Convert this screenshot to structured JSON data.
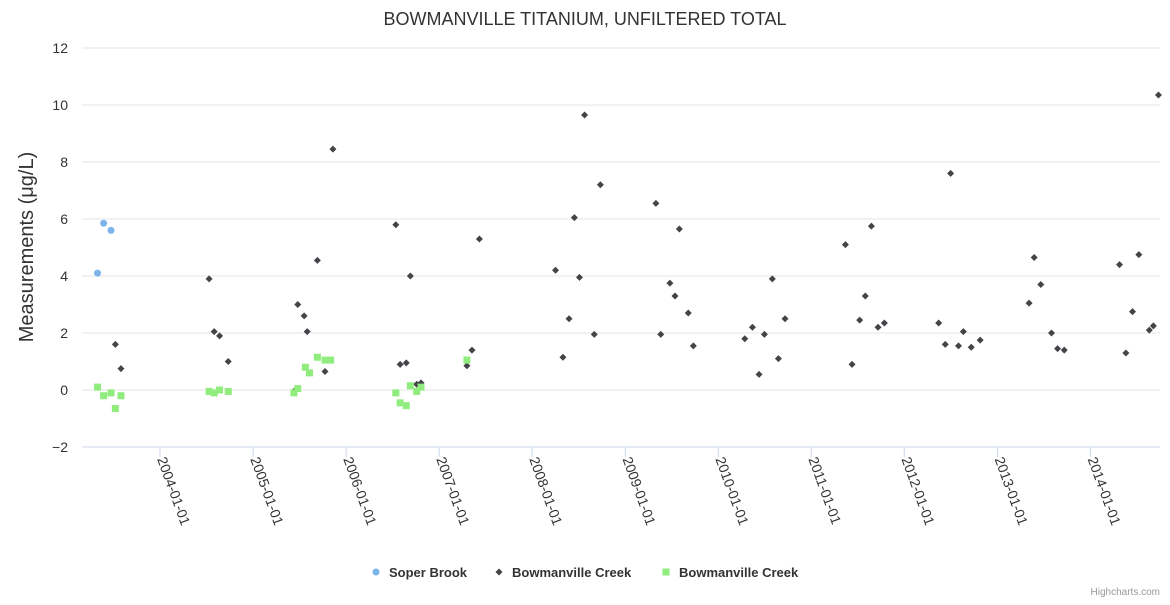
{
  "chart_data": {
    "type": "scatter",
    "title": "BOWMANVILLE TITANIUM, UNFILTERED TOTAL",
    "ylabel": "Measurements (μg/L)",
    "xlabel": "",
    "ylim": [
      -2,
      12
    ],
    "yticks": [
      -2,
      0,
      2,
      4,
      6,
      8,
      10,
      12
    ],
    "xlim": [
      "2003-03-01",
      "2014-10-01"
    ],
    "xticks": [
      "2004-01-01",
      "2005-01-01",
      "2006-01-01",
      "2007-01-01",
      "2008-01-01",
      "2009-01-01",
      "2010-01-01",
      "2011-01-01",
      "2012-01-01",
      "2013-01-01",
      "2014-01-01"
    ],
    "grid": "horizontal",
    "legend_position": "bottom-center",
    "credits": "Highcharts.com",
    "series": [
      {
        "name": "Soper Brook",
        "marker": "circle",
        "color": "#7cb5ec",
        "points": [
          {
            "x": "2003-05-01",
            "y": 4.1
          },
          {
            "x": "2003-05-25",
            "y": 5.85
          },
          {
            "x": "2003-06-23",
            "y": 5.6
          }
        ]
      },
      {
        "name": "Bowmanville Creek",
        "marker": "diamond",
        "color": "#434348",
        "points": [
          {
            "x": "2003-07-10",
            "y": 1.6
          },
          {
            "x": "2003-08-01",
            "y": 0.75
          },
          {
            "x": "2004-07-12",
            "y": 3.9
          },
          {
            "x": "2004-08-01",
            "y": 2.05
          },
          {
            "x": "2004-08-22",
            "y": 1.9
          },
          {
            "x": "2004-09-25",
            "y": 1.0
          },
          {
            "x": "2005-06-10",
            "y": -0.05
          },
          {
            "x": "2005-06-25",
            "y": 3.0
          },
          {
            "x": "2005-07-20",
            "y": 2.6
          },
          {
            "x": "2005-08-01",
            "y": 2.05
          },
          {
            "x": "2005-09-10",
            "y": 4.55
          },
          {
            "x": "2005-10-10",
            "y": 0.65
          },
          {
            "x": "2005-11-10",
            "y": 8.45
          },
          {
            "x": "2006-07-15",
            "y": 5.8
          },
          {
            "x": "2006-08-01",
            "y": 0.9
          },
          {
            "x": "2006-08-25",
            "y": 0.95
          },
          {
            "x": "2006-09-10",
            "y": 4.0
          },
          {
            "x": "2006-10-05",
            "y": 0.2
          },
          {
            "x": "2006-10-22",
            "y": 0.25
          },
          {
            "x": "2007-04-20",
            "y": 0.85
          },
          {
            "x": "2007-05-10",
            "y": 1.4
          },
          {
            "x": "2007-06-08",
            "y": 5.3
          },
          {
            "x": "2008-04-02",
            "y": 4.2
          },
          {
            "x": "2008-05-01",
            "y": 1.15
          },
          {
            "x": "2008-05-25",
            "y": 2.5
          },
          {
            "x": "2008-06-15",
            "y": 6.05
          },
          {
            "x": "2008-07-05",
            "y": 3.95
          },
          {
            "x": "2008-07-25",
            "y": 9.65
          },
          {
            "x": "2008-09-01",
            "y": 1.95
          },
          {
            "x": "2008-09-25",
            "y": 7.2
          },
          {
            "x": "2009-05-01",
            "y": 6.55
          },
          {
            "x": "2009-05-20",
            "y": 1.95
          },
          {
            "x": "2009-06-25",
            "y": 3.75
          },
          {
            "x": "2009-07-15",
            "y": 3.3
          },
          {
            "x": "2009-08-01",
            "y": 5.65
          },
          {
            "x": "2009-09-05",
            "y": 2.7
          },
          {
            "x": "2009-09-25",
            "y": 1.55
          },
          {
            "x": "2010-04-15",
            "y": 1.8
          },
          {
            "x": "2010-05-15",
            "y": 2.2
          },
          {
            "x": "2010-06-10",
            "y": 0.55
          },
          {
            "x": "2010-07-01",
            "y": 1.95
          },
          {
            "x": "2010-08-01",
            "y": 3.9
          },
          {
            "x": "2010-08-25",
            "y": 1.1
          },
          {
            "x": "2010-09-20",
            "y": 2.5
          },
          {
            "x": "2011-05-15",
            "y": 5.1
          },
          {
            "x": "2011-06-10",
            "y": 0.9
          },
          {
            "x": "2011-07-10",
            "y": 2.45
          },
          {
            "x": "2011-08-01",
            "y": 3.3
          },
          {
            "x": "2011-08-25",
            "y": 5.75
          },
          {
            "x": "2011-09-20",
            "y": 2.2
          },
          {
            "x": "2011-10-15",
            "y": 2.35
          },
          {
            "x": "2012-05-15",
            "y": 2.35
          },
          {
            "x": "2012-06-10",
            "y": 1.6
          },
          {
            "x": "2012-07-01",
            "y": 7.6
          },
          {
            "x": "2012-08-01",
            "y": 1.55
          },
          {
            "x": "2012-08-20",
            "y": 2.05
          },
          {
            "x": "2012-09-20",
            "y": 1.5
          },
          {
            "x": "2012-10-25",
            "y": 1.75
          },
          {
            "x": "2013-05-05",
            "y": 3.05
          },
          {
            "x": "2013-05-25",
            "y": 4.65
          },
          {
            "x": "2013-06-20",
            "y": 3.7
          },
          {
            "x": "2013-08-01",
            "y": 2.0
          },
          {
            "x": "2013-08-25",
            "y": 1.45
          },
          {
            "x": "2013-09-20",
            "y": 1.4
          },
          {
            "x": "2014-04-25",
            "y": 4.4
          },
          {
            "x": "2014-05-20",
            "y": 1.3
          },
          {
            "x": "2014-06-15",
            "y": 2.75
          },
          {
            "x": "2014-07-10",
            "y": 4.75
          },
          {
            "x": "2014-08-20",
            "y": 2.1
          },
          {
            "x": "2014-09-05",
            "y": 2.25
          },
          {
            "x": "2014-09-25",
            "y": 10.35
          }
        ]
      },
      {
        "name": "Bowmanville Creek",
        "marker": "square",
        "color": "#90ed7d",
        "points": [
          {
            "x": "2003-05-01",
            "y": 0.1
          },
          {
            "x": "2003-05-25",
            "y": -0.2
          },
          {
            "x": "2003-06-23",
            "y": -0.1
          },
          {
            "x": "2003-07-10",
            "y": -0.65
          },
          {
            "x": "2003-08-01",
            "y": -0.2
          },
          {
            "x": "2004-07-12",
            "y": -0.05
          },
          {
            "x": "2004-08-01",
            "y": -0.1
          },
          {
            "x": "2004-08-22",
            "y": 0.0
          },
          {
            "x": "2004-09-25",
            "y": -0.05
          },
          {
            "x": "2005-06-10",
            "y": -0.1
          },
          {
            "x": "2005-06-25",
            "y": 0.05
          },
          {
            "x": "2005-07-25",
            "y": 0.8
          },
          {
            "x": "2005-08-10",
            "y": 0.6
          },
          {
            "x": "2005-09-10",
            "y": 1.15
          },
          {
            "x": "2005-10-10",
            "y": 1.05
          },
          {
            "x": "2005-11-01",
            "y": 1.05
          },
          {
            "x": "2006-07-15",
            "y": -0.1
          },
          {
            "x": "2006-08-01",
            "y": -0.45
          },
          {
            "x": "2006-08-25",
            "y": -0.55
          },
          {
            "x": "2006-09-10",
            "y": 0.15
          },
          {
            "x": "2006-10-05",
            "y": -0.05
          },
          {
            "x": "2006-10-22",
            "y": 0.1
          },
          {
            "x": "2007-04-20",
            "y": 1.05
          }
        ]
      }
    ]
  }
}
